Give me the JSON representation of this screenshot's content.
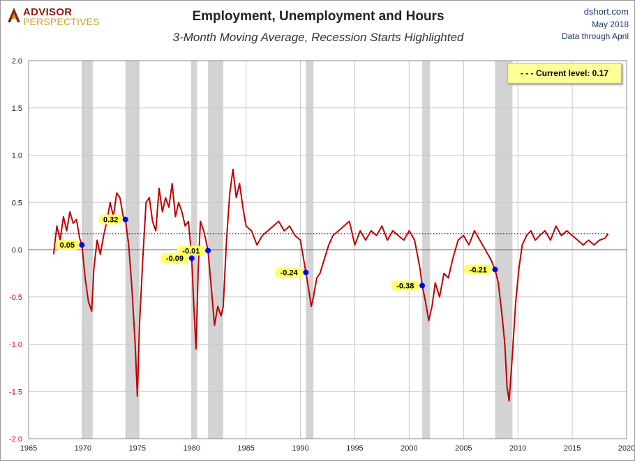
{
  "branding": {
    "logo_top": "ADVISOR",
    "logo_bottom": "PERSPECTIVES",
    "source": "dshort.com",
    "date": "May 2018",
    "data_through": "Data through April"
  },
  "colors": {
    "series": "#c00000",
    "recession": "#d3d3d3",
    "marker": "#0000ff",
    "label_bg": "#ffff66"
  },
  "chart_data": {
    "type": "line",
    "title": "Employment, Unemployment and Hours",
    "subtitle": "3-Month Moving Average, Recession Starts Highlighted",
    "xlim": [
      1965,
      2020
    ],
    "ylim": [
      -2.0,
      2.0
    ],
    "x_ticks": [
      "1965",
      "1970",
      "1975",
      "1980",
      "1985",
      "1990",
      "1995",
      "2000",
      "2005",
      "2010",
      "2015",
      "2020"
    ],
    "y_ticks": [
      "2.0",
      "1.5",
      "1.0",
      "0.5",
      "0.0",
      "-0.5",
      "-1.0",
      "-1.5",
      "-2.0"
    ],
    "grid": true,
    "legend_position": "top-right",
    "current_level": {
      "label": "Current level:",
      "value": 0.17
    },
    "recessions": [
      [
        1969.9,
        1970.9
      ],
      [
        1973.9,
        1975.2
      ],
      [
        1980.0,
        1980.5
      ],
      [
        1981.5,
        1982.9
      ],
      [
        1990.5,
        1991.2
      ],
      [
        2001.2,
        2001.9
      ],
      [
        2007.9,
        2009.5
      ]
    ],
    "recession_starts": [
      {
        "x": 1969.9,
        "y": 0.05,
        "label": "0.05"
      },
      {
        "x": 1973.9,
        "y": 0.32,
        "label": "0.32"
      },
      {
        "x": 1980.0,
        "y": -0.09,
        "label": "-0.09"
      },
      {
        "x": 1981.5,
        "y": -0.01,
        "label": "-0.01"
      },
      {
        "x": 1990.5,
        "y": -0.24,
        "label": "-0.24"
      },
      {
        "x": 2001.2,
        "y": -0.38,
        "label": "-0.38"
      },
      {
        "x": 2007.9,
        "y": -0.21,
        "label": "-0.21"
      }
    ],
    "series": [
      {
        "x": [
          1967.3,
          1967.6,
          1967.9,
          1968.2,
          1968.5,
          1968.8,
          1969.1,
          1969.4,
          1969.7,
          1969.9,
          1970.2,
          1970.5,
          1970.8,
          1971.0,
          1971.3,
          1971.6,
          1971.9,
          1972.2,
          1972.5,
          1972.8,
          1973.1,
          1973.4,
          1973.7,
          1973.9,
          1974.2,
          1974.5,
          1974.8,
          1975.0,
          1975.2,
          1975.5,
          1975.8,
          1976.1,
          1976.4,
          1976.7,
          1977.0,
          1977.3,
          1977.6,
          1977.9,
          1978.2,
          1978.5,
          1978.8,
          1979.1,
          1979.4,
          1979.7,
          1980.0,
          1980.2,
          1980.4,
          1980.6,
          1980.8,
          1981.1,
          1981.3,
          1981.5,
          1981.8,
          1982.1,
          1982.4,
          1982.7,
          1982.9,
          1983.2,
          1983.5,
          1983.8,
          1984.1,
          1984.4,
          1984.7,
          1985.0,
          1985.5,
          1986.0,
          1986.5,
          1987.0,
          1987.5,
          1988.0,
          1988.5,
          1989.0,
          1989.5,
          1990.0,
          1990.5,
          1990.8,
          1991.0,
          1991.2,
          1991.5,
          1991.8,
          1992.2,
          1992.6,
          1993.0,
          1993.5,
          1994.0,
          1994.5,
          1995.0,
          1995.5,
          1996.0,
          1996.5,
          1997.0,
          1997.5,
          1998.0,
          1998.5,
          1999.0,
          1999.5,
          2000.0,
          2000.5,
          2001.0,
          2001.2,
          2001.5,
          2001.8,
          2002.1,
          2002.4,
          2002.8,
          2003.2,
          2003.6,
          2004.0,
          2004.5,
          2005.0,
          2005.5,
          2006.0,
          2006.5,
          2007.0,
          2007.5,
          2007.9,
          2008.2,
          2008.5,
          2008.8,
          2009.0,
          2009.2,
          2009.5,
          2009.8,
          2010.1,
          2010.4,
          2010.8,
          2011.2,
          2011.6,
          2012.0,
          2012.5,
          2013.0,
          2013.5,
          2014.0,
          2014.5,
          2015.0,
          2015.5,
          2016.0,
          2016.5,
          2017.0,
          2017.5,
          2018.0,
          2018.3
        ],
        "y": [
          -0.05,
          0.25,
          0.1,
          0.35,
          0.2,
          0.4,
          0.28,
          0.32,
          0.12,
          0.05,
          -0.3,
          -0.55,
          -0.65,
          -0.2,
          0.1,
          -0.05,
          0.15,
          0.3,
          0.5,
          0.35,
          0.6,
          0.55,
          0.35,
          0.32,
          0.05,
          -0.4,
          -1.0,
          -1.55,
          -0.8,
          -0.1,
          0.5,
          0.55,
          0.3,
          0.2,
          0.65,
          0.4,
          0.55,
          0.45,
          0.7,
          0.35,
          0.5,
          0.4,
          0.25,
          0.3,
          -0.09,
          -0.6,
          -1.05,
          -0.2,
          0.3,
          0.2,
          0.1,
          -0.01,
          -0.4,
          -0.8,
          -0.6,
          -0.7,
          -0.6,
          0.1,
          0.6,
          0.85,
          0.55,
          0.7,
          0.45,
          0.25,
          0.2,
          0.05,
          0.15,
          0.2,
          0.25,
          0.3,
          0.2,
          0.25,
          0.15,
          0.1,
          -0.24,
          -0.45,
          -0.6,
          -0.5,
          -0.3,
          -0.25,
          -0.1,
          0.05,
          0.15,
          0.2,
          0.25,
          0.3,
          0.05,
          0.2,
          0.1,
          0.2,
          0.15,
          0.25,
          0.1,
          0.2,
          0.15,
          0.1,
          0.2,
          0.1,
          -0.2,
          -0.38,
          -0.55,
          -0.75,
          -0.6,
          -0.35,
          -0.5,
          -0.25,
          -0.3,
          -0.1,
          0.1,
          0.15,
          0.05,
          0.2,
          0.1,
          0.0,
          -0.1,
          -0.21,
          -0.35,
          -0.65,
          -1.0,
          -1.45,
          -1.6,
          -1.1,
          -0.55,
          -0.2,
          0.05,
          0.15,
          0.2,
          0.1,
          0.15,
          0.2,
          0.1,
          0.25,
          0.15,
          0.2,
          0.15,
          0.1,
          0.05,
          0.1,
          0.05,
          0.1,
          0.12,
          0.17
        ]
      }
    ]
  }
}
